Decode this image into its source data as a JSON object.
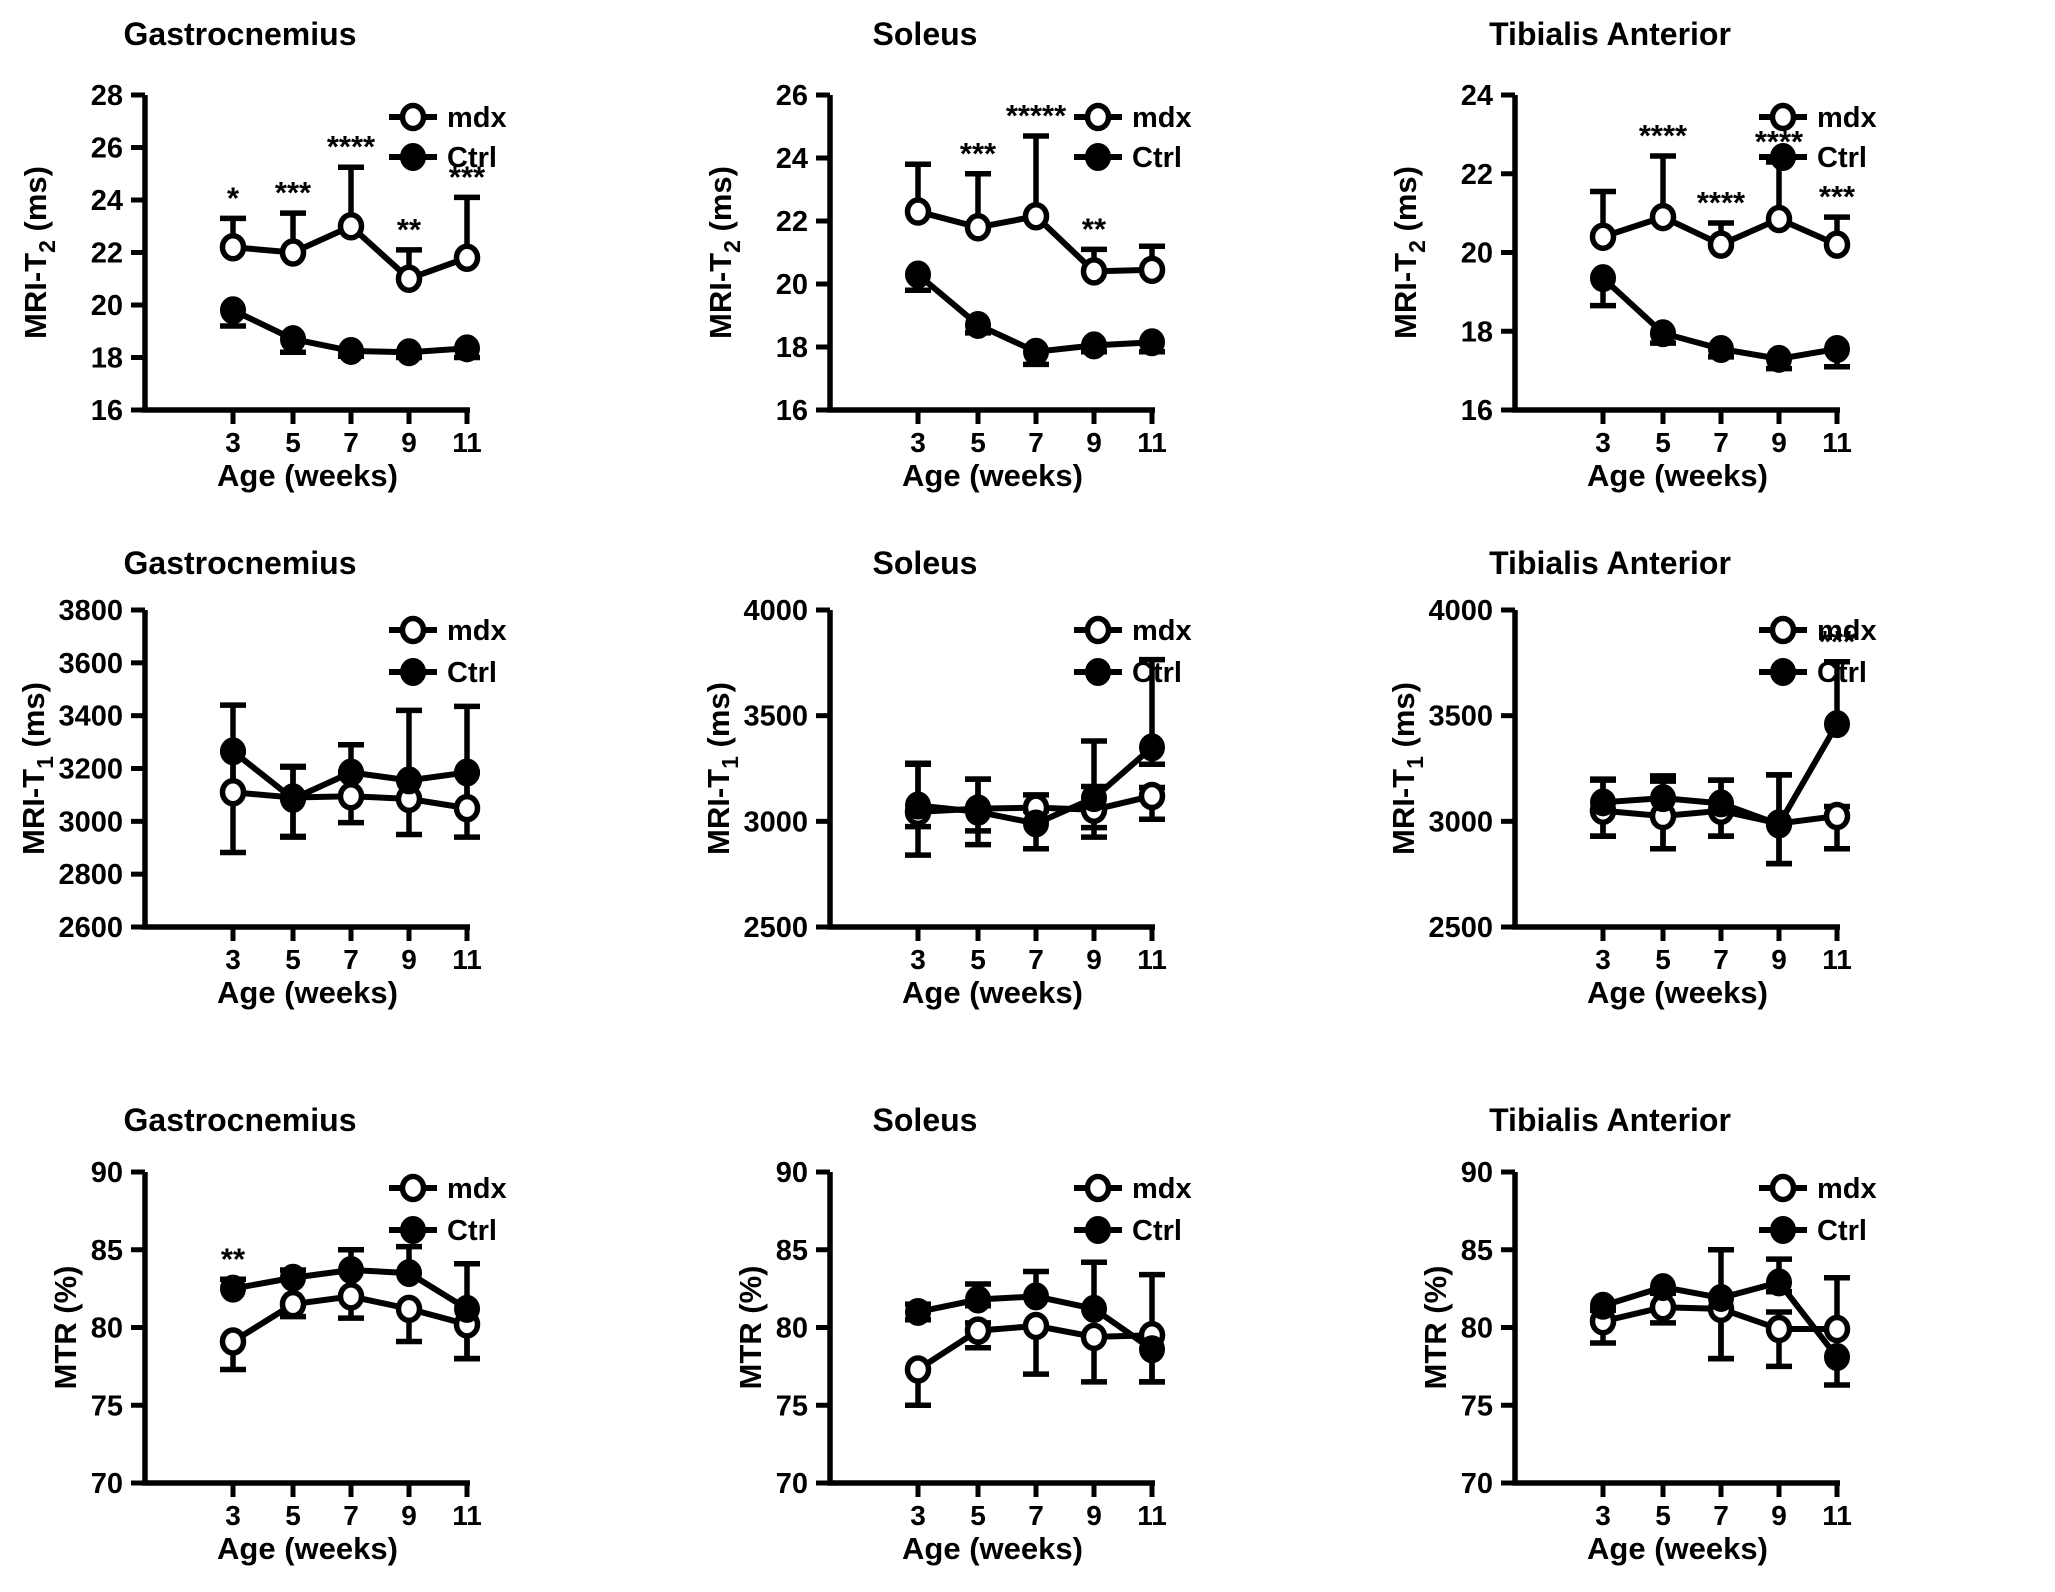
{
  "figure": {
    "background": "#ffffff",
    "ink": "#000000",
    "legend": [
      {
        "label": "mdx",
        "marker": "open"
      },
      {
        "label": "Ctrl",
        "marker": "filled"
      }
    ],
    "legend_position": "top-right-outside",
    "xlabel": "Age (weeks)",
    "x_ticks": [
      "3",
      "5",
      "7",
      "9",
      "11"
    ],
    "grid": "off"
  },
  "chart_data": [
    {
      "type": "line",
      "title": "Gastrocnemius",
      "ylabel": {
        "prefix": "MRI-T",
        "sub": "2",
        "suffix": " (ms)"
      },
      "xlabel": "Age (weeks)",
      "x": [
        3,
        5,
        7,
        9,
        11
      ],
      "ylim": [
        16,
        28
      ],
      "yticks": [
        16,
        18,
        20,
        22,
        24,
        26,
        28
      ],
      "series": [
        {
          "name": "mdx",
          "marker": "open",
          "values": [
            22.2,
            22.0,
            23.0,
            21.0,
            21.8
          ],
          "err_up": [
            1.1,
            1.5,
            2.25,
            1.1,
            2.3
          ],
          "err_down": [
            0,
            0,
            0,
            0,
            0
          ]
        },
        {
          "name": "Ctrl",
          "marker": "filled",
          "values": [
            19.8,
            18.7,
            18.25,
            18.2,
            18.35
          ],
          "err_up": [
            0,
            0,
            0,
            0,
            0
          ],
          "err_down": [
            0.6,
            0.5,
            0.2,
            0.2,
            0.35
          ]
        }
      ],
      "significance": [
        "*",
        "***",
        "****",
        "**",
        "***"
      ]
    },
    {
      "type": "line",
      "title": "Soleus",
      "ylabel": {
        "prefix": "MRI-T",
        "sub": "2",
        "suffix": " (ms)"
      },
      "xlabel": "Age (weeks)",
      "x": [
        3,
        5,
        7,
        9,
        11
      ],
      "ylim": [
        16,
        26
      ],
      "yticks": [
        16,
        18,
        20,
        22,
        24,
        26
      ],
      "series": [
        {
          "name": "mdx",
          "marker": "open",
          "values": [
            22.3,
            21.8,
            22.15,
            20.4,
            20.45
          ],
          "err_up": [
            1.5,
            1.7,
            2.55,
            0.7,
            0.75
          ],
          "err_down": [
            0,
            0,
            0,
            0,
            0
          ]
        },
        {
          "name": "Ctrl",
          "marker": "filled",
          "values": [
            20.3,
            18.7,
            17.85,
            18.05,
            18.15
          ],
          "err_up": [
            0,
            0,
            0,
            0,
            0
          ],
          "err_down": [
            0.5,
            0.25,
            0.4,
            0.2,
            0.3
          ]
        }
      ],
      "significance": [
        null,
        "***",
        "*****",
        "**",
        null
      ]
    },
    {
      "type": "line",
      "title": "Tibialis Anterior",
      "ylabel": {
        "prefix": "MRI-T",
        "sub": "2",
        "suffix": " (ms)"
      },
      "xlabel": "Age (weeks)",
      "x": [
        3,
        5,
        7,
        9,
        11
      ],
      "ylim": [
        16,
        24
      ],
      "yticks": [
        16,
        18,
        20,
        22,
        24
      ],
      "series": [
        {
          "name": "mdx",
          "marker": "open",
          "values": [
            20.4,
            20.9,
            20.2,
            20.85,
            20.2
          ],
          "err_up": [
            1.15,
            1.55,
            0.55,
            1.45,
            0.7
          ],
          "err_down": [
            0,
            0,
            0,
            0,
            0
          ]
        },
        {
          "name": "Ctrl",
          "marker": "filled",
          "values": [
            19.35,
            17.95,
            17.55,
            17.3,
            17.55
          ],
          "err_up": [
            0,
            0,
            0,
            0,
            0
          ],
          "err_down": [
            0.7,
            0.25,
            0.2,
            0.25,
            0.45
          ]
        }
      ],
      "significance": [
        null,
        "****",
        "****",
        "****",
        "***"
      ]
    },
    {
      "type": "line",
      "title": "Gastrocnemius",
      "ylabel": {
        "prefix": "MRI-T",
        "sub": "1",
        "suffix": " (ms)"
      },
      "xlabel": "Age (weeks)",
      "x": [
        3,
        5,
        7,
        9,
        11
      ],
      "ylim": [
        2600,
        3800
      ],
      "yticks": [
        2600,
        2800,
        3000,
        3200,
        3400,
        3600,
        3800
      ],
      "series": [
        {
          "name": "mdx",
          "marker": "open",
          "values": [
            3110,
            3090,
            3095,
            3085,
            3050
          ],
          "err_up": [
            155,
            115,
            90,
            70,
            135
          ],
          "err_down": [
            228,
            150,
            100,
            135,
            110
          ]
        },
        {
          "name": "Ctrl",
          "marker": "filled",
          "values": [
            3265,
            3085,
            3185,
            3155,
            3185
          ],
          "err_up": [
            175,
            123,
            105,
            265,
            250
          ],
          "err_down": [
            155,
            142,
            90,
            70,
            135
          ]
        }
      ],
      "significance": [
        null,
        null,
        null,
        null,
        null
      ]
    },
    {
      "type": "line",
      "title": "Soleus",
      "ylabel": {
        "prefix": "MRI-T",
        "sub": "1",
        "suffix": " (ms)"
      },
      "xlabel": "Age (weeks)",
      "x": [
        3,
        5,
        7,
        9,
        11
      ],
      "ylim": [
        2500,
        4000
      ],
      "yticks": [
        2500,
        3000,
        3500,
        4000
      ],
      "series": [
        {
          "name": "mdx",
          "marker": "open",
          "values": [
            3045,
            3060,
            3065,
            3055,
            3120
          ],
          "err_up": [
            225,
            140,
            60,
            110,
            40
          ],
          "err_down": [
            205,
            105,
            65,
            85,
            110
          ]
        },
        {
          "name": "Ctrl",
          "marker": "filled",
          "values": [
            3075,
            3045,
            2990,
            3110,
            3350
          ],
          "err_up": [
            200,
            155,
            60,
            270,
            415
          ],
          "err_down": [
            100,
            155,
            120,
            185,
            80
          ]
        }
      ],
      "significance": [
        null,
        null,
        null,
        null,
        null
      ]
    },
    {
      "type": "line",
      "title": "Tibialis Anterior",
      "ylabel": {
        "prefix": "MRI-T",
        "sub": "1",
        "suffix": " (ms)"
      },
      "xlabel": "Age (weeks)",
      "x": [
        3,
        5,
        7,
        9,
        11
      ],
      "ylim": [
        2500,
        4000
      ],
      "yticks": [
        2500,
        3000,
        3500,
        4000
      ],
      "series": [
        {
          "name": "mdx",
          "marker": "open",
          "values": [
            3050,
            3025,
            3050,
            2990,
            3025
          ],
          "err_up": [
            145,
            165,
            145,
            230,
            45
          ],
          "err_down": [
            120,
            155,
            120,
            190,
            155
          ]
        },
        {
          "name": "Ctrl",
          "marker": "filled",
          "values": [
            3090,
            3110,
            3085,
            2985,
            3460
          ],
          "err_up": [
            110,
            105,
            110,
            235,
            295
          ],
          "err_down": [
            160,
            240,
            155,
            185,
            0
          ]
        }
      ],
      "significance": [
        null,
        null,
        null,
        null,
        "***"
      ]
    },
    {
      "type": "line",
      "title": "Gastrocnemius",
      "ylabel": {
        "prefix": "MTR (%)",
        "sub": "",
        "suffix": ""
      },
      "xlabel": "Age (weeks)",
      "x": [
        3,
        5,
        7,
        9,
        11
      ],
      "ylim": [
        70,
        90
      ],
      "yticks": [
        70,
        75,
        80,
        85,
        90
      ],
      "series": [
        {
          "name": "mdx",
          "marker": "open",
          "values": [
            79.1,
            81.5,
            82.0,
            81.2,
            80.2
          ],
          "err_up": [
            0,
            0,
            0,
            0,
            0
          ],
          "err_down": [
            1.8,
            0.8,
            1.4,
            2.1,
            2.2
          ]
        },
        {
          "name": "Ctrl",
          "marker": "filled",
          "values": [
            82.5,
            83.2,
            83.7,
            83.5,
            81.2
          ],
          "err_up": [
            0.6,
            0.5,
            1.3,
            1.7,
            2.9
          ],
          "err_down": [
            0,
            0,
            0,
            0,
            3.2
          ]
        }
      ],
      "significance": [
        "**",
        null,
        null,
        null,
        null
      ]
    },
    {
      "type": "line",
      "title": "Soleus",
      "ylabel": {
        "prefix": "MTR (%)",
        "sub": "",
        "suffix": ""
      },
      "xlabel": "Age (weeks)",
      "x": [
        3,
        5,
        7,
        9,
        11
      ],
      "ylim": [
        70,
        90
      ],
      "yticks": [
        70,
        75,
        80,
        85,
        90
      ],
      "series": [
        {
          "name": "mdx",
          "marker": "open",
          "values": [
            77.3,
            79.8,
            80.1,
            79.4,
            79.5
          ],
          "err_up": [
            0,
            0.5,
            0,
            0,
            0
          ],
          "err_down": [
            2.3,
            1.1,
            3.1,
            2.9,
            3.0
          ]
        },
        {
          "name": "Ctrl",
          "marker": "filled",
          "values": [
            81.0,
            81.8,
            82.0,
            81.2,
            78.6
          ],
          "err_up": [
            0.5,
            1.0,
            1.6,
            3.0,
            4.8
          ],
          "err_down": [
            0.5,
            0.4,
            0,
            0,
            2.1
          ]
        }
      ],
      "significance": [
        null,
        null,
        null,
        null,
        null
      ]
    },
    {
      "type": "line",
      "title": "Tibialis Anterior",
      "ylabel": {
        "prefix": "MTR (%)",
        "sub": "",
        "suffix": ""
      },
      "xlabel": "Age (weeks)",
      "x": [
        3,
        5,
        7,
        9,
        11
      ],
      "ylim": [
        70,
        90
      ],
      "yticks": [
        70,
        75,
        80,
        85,
        90
      ],
      "series": [
        {
          "name": "mdx",
          "marker": "open",
          "values": [
            80.4,
            81.3,
            81.2,
            79.9,
            79.9
          ],
          "err_up": [
            0.7,
            0.9,
            0,
            1.1,
            3.3
          ],
          "err_down": [
            1.4,
            1.0,
            3.2,
            2.4,
            0
          ]
        },
        {
          "name": "Ctrl",
          "marker": "filled",
          "values": [
            81.4,
            82.6,
            81.9,
            82.9,
            78.1
          ],
          "err_up": [
            0,
            0,
            3.1,
            1.5,
            0
          ],
          "err_down": [
            0,
            0.3,
            3.9,
            0.6,
            1.8
          ]
        }
      ],
      "significance": [
        null,
        null,
        null,
        null,
        null
      ]
    }
  ]
}
